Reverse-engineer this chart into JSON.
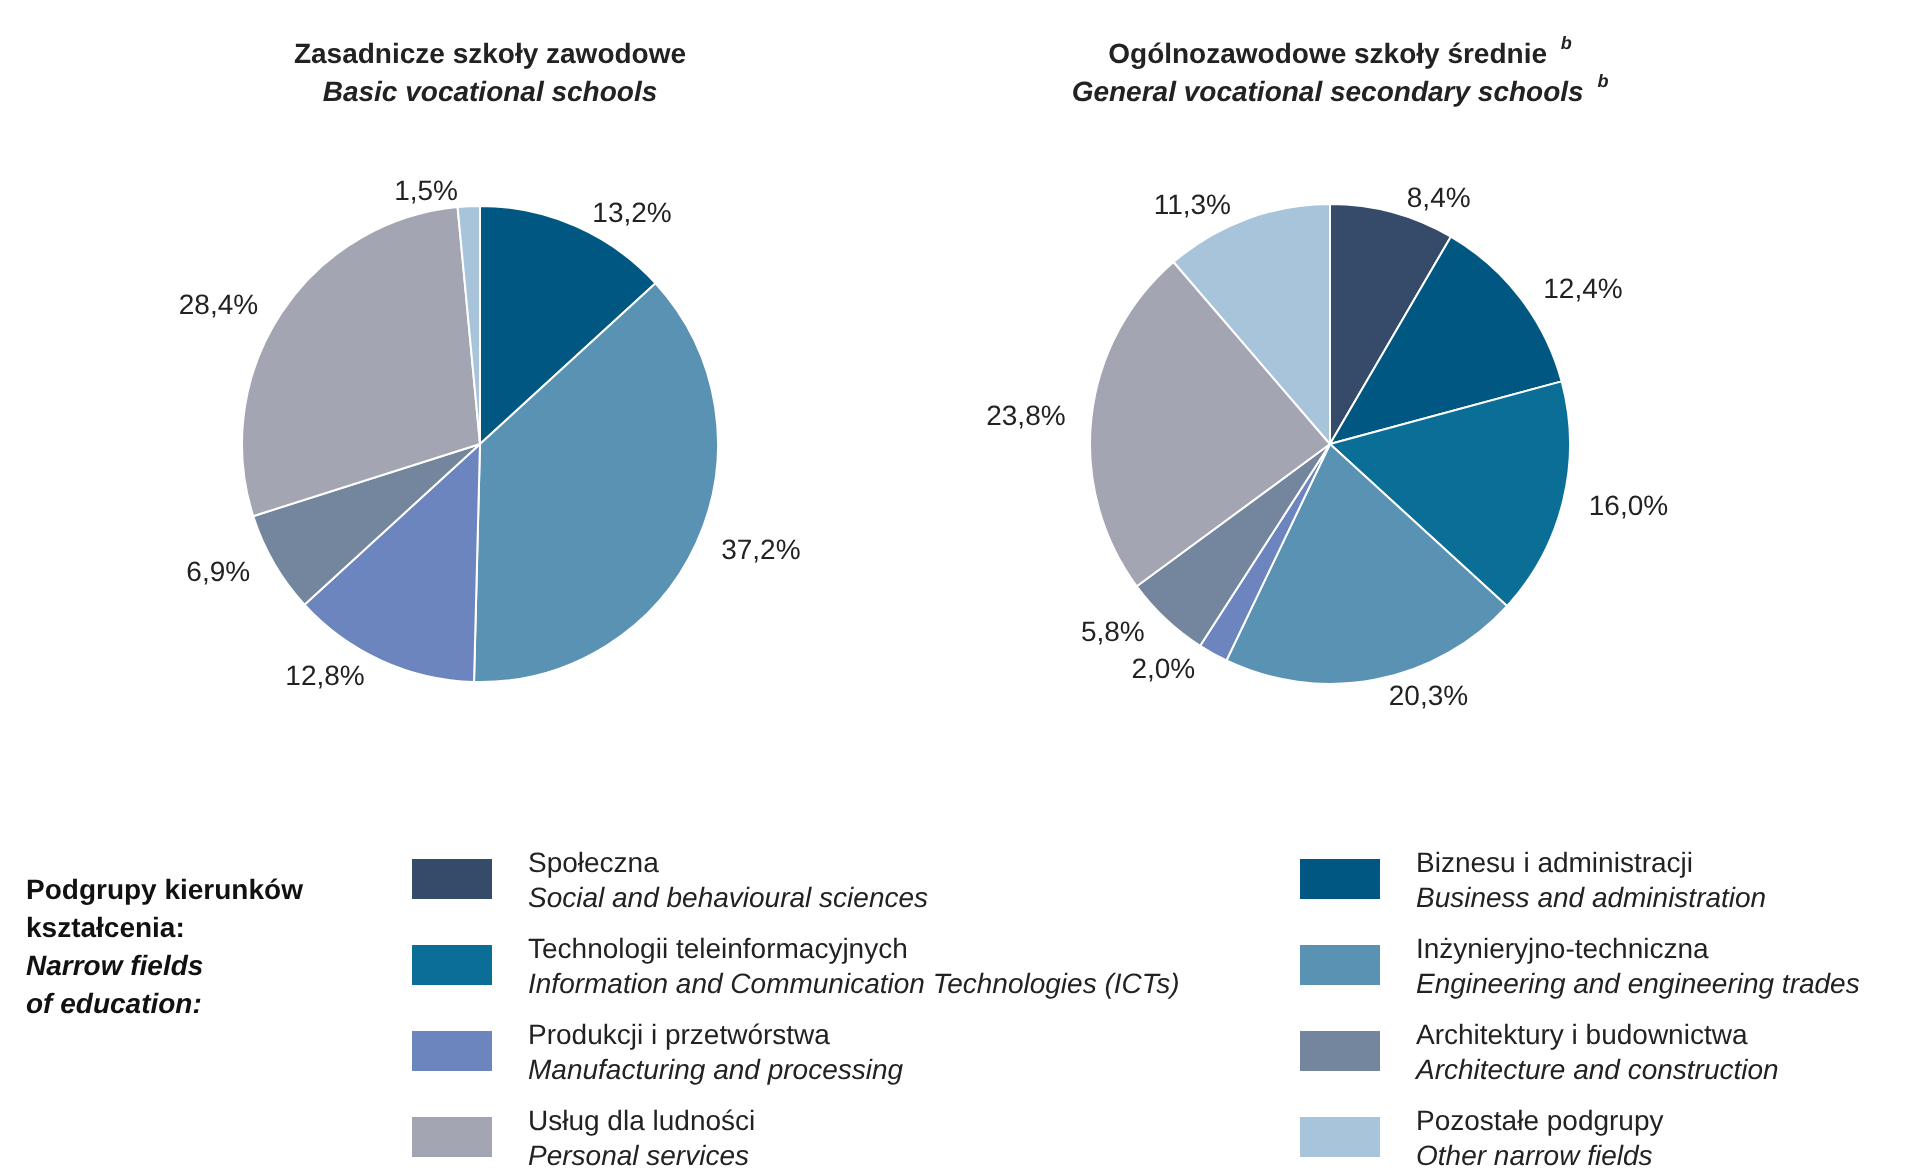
{
  "chart_data": [
    {
      "type": "pie",
      "title": "Zasadnicze szkoły zawodowe",
      "subtitle": "Basic vocational schools",
      "legend": false,
      "categories": [
        null,
        null,
        null,
        null,
        null,
        null
      ],
      "values": [
        13.2,
        37.2,
        12.8,
        6.9,
        28.4,
        1.5
      ],
      "value_labels": [
        "13,2%",
        "37,2%",
        "12,8%",
        "6,9%",
        "28,4%",
        "1,5%"
      ],
      "colors": [
        "#005882",
        "#5a92b4",
        "#6c85bf",
        "#74869d",
        "#a3a6b2",
        "#a8c4da"
      ]
    },
    {
      "type": "pie",
      "title": "Ogólnozawodowe szkoły średnie $^{b}$",
      "subtitle": "General vocational secondary schools $^{b}$",
      "legend": "bottom",
      "legend_title": "Podgrupy kierunków\nkształcenia:\nNarrow fields\nof education:",
      "categories": [
        "Społeczna\nSocial and behavioural sciences",
        "Biznesu i administracji\nBusiness and administration",
        "Technologii teleinformacyjnych\nInformation and Communication Technologies (ICTs)",
        "Inżynieryjno-techniczna\nEngineering and engineering trades",
        "Produkcji i przetwórstwa\nManufacturing and processing",
        "Architektury i budownictwa\nArchitecture and construction",
        "Usług dla ludności\nPersonal services",
        "Pozostałe podgrupy\nOther narrow fields"
      ],
      "values": [
        8.4,
        12.4,
        16.0,
        20.3,
        2.0,
        5.8,
        23.8,
        11.3
      ],
      "value_labels": [
        "8,4%",
        "12,4%",
        "16,0%",
        "20,3%",
        "2,0%",
        "5,8%",
        "23,8%",
        "11,3%"
      ],
      "colors": [
        "#364a69",
        "#005882",
        "#0b6e96",
        "#5a92b4",
        "#6c85bf",
        "#74869d",
        "#a3a6b2",
        "#a8c4da"
      ]
    }
  ]
}
